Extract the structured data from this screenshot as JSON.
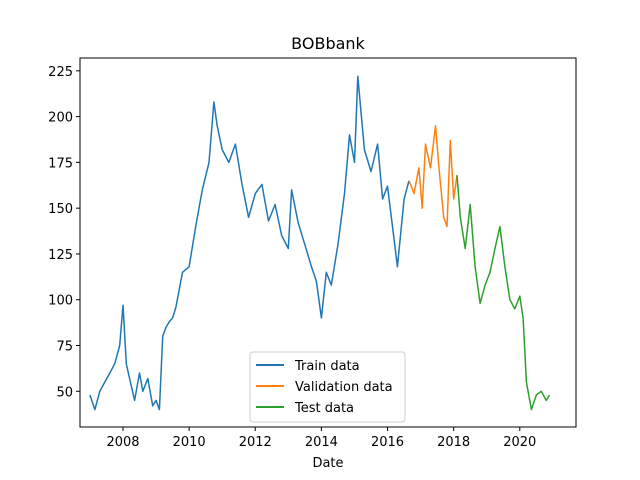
{
  "chart_data": {
    "type": "line",
    "title": "BOBbank",
    "xlabel": "Date",
    "ylabel": "",
    "xlim": [
      2006.7,
      2021.7
    ],
    "ylim": [
      30.5,
      232
    ],
    "xticks": [
      2008,
      2010,
      2012,
      2014,
      2016,
      2018,
      2020
    ],
    "yticks": [
      50,
      75,
      100,
      125,
      150,
      175,
      200,
      225
    ],
    "grid": false,
    "legend_position": "lower center",
    "series": [
      {
        "name": "Train data",
        "color": "#1f77b4",
        "x": [
          2007.0,
          2007.15,
          2007.3,
          2007.45,
          2007.6,
          2007.75,
          2007.9,
          2008.0,
          2008.1,
          2008.2,
          2008.35,
          2008.5,
          2008.6,
          2008.75,
          2008.9,
          2009.0,
          2009.1,
          2009.2,
          2009.3,
          2009.4,
          2009.5,
          2009.6,
          2009.8,
          2010.0,
          2010.2,
          2010.4,
          2010.6,
          2010.75,
          2010.85,
          2011.0,
          2011.2,
          2011.4,
          2011.6,
          2011.8,
          2012.0,
          2012.2,
          2012.4,
          2012.6,
          2012.8,
          2013.0,
          2013.1,
          2013.3,
          2013.5,
          2013.7,
          2013.85,
          2014.0,
          2014.15,
          2014.3,
          2014.5,
          2014.7,
          2014.85,
          2015.0,
          2015.1,
          2015.3,
          2015.5,
          2015.7,
          2015.85,
          2016.0,
          2016.15,
          2016.3,
          2016.5,
          2016.65
        ],
        "y": [
          48,
          40,
          50,
          55,
          60,
          65,
          75,
          97,
          65,
          57,
          45,
          60,
          50,
          57,
          42,
          45,
          40,
          80,
          85,
          88,
          90,
          96,
          115,
          118,
          140,
          160,
          175,
          208,
          195,
          182,
          175,
          185,
          163,
          145,
          158,
          163,
          143,
          152,
          135,
          128,
          160,
          142,
          130,
          118,
          110,
          90,
          115,
          108,
          130,
          158,
          190,
          175,
          222,
          182,
          170,
          185,
          155,
          162,
          140,
          118,
          155,
          165
        ]
      },
      {
        "name": "Validation data",
        "color": "#ff7f0e",
        "x": [
          2016.65,
          2016.8,
          2016.95,
          2017.05,
          2017.15,
          2017.3,
          2017.45,
          2017.55,
          2017.7,
          2017.8,
          2017.9,
          2018.0,
          2018.1
        ],
        "y": [
          165,
          158,
          172,
          150,
          185,
          172,
          195,
          173,
          145,
          140,
          187,
          155,
          168
        ]
      },
      {
        "name": "Test data",
        "color": "#2ca02c",
        "x": [
          2018.1,
          2018.2,
          2018.35,
          2018.5,
          2018.65,
          2018.8,
          2018.95,
          2019.1,
          2019.25,
          2019.4,
          2019.55,
          2019.7,
          2019.85,
          2020.0,
          2020.1,
          2020.2,
          2020.35,
          2020.5,
          2020.65,
          2020.8,
          2020.9
        ],
        "y": [
          168,
          145,
          128,
          152,
          118,
          98,
          108,
          115,
          128,
          140,
          118,
          100,
          95,
          102,
          90,
          55,
          40,
          48,
          50,
          45,
          48
        ]
      }
    ]
  }
}
